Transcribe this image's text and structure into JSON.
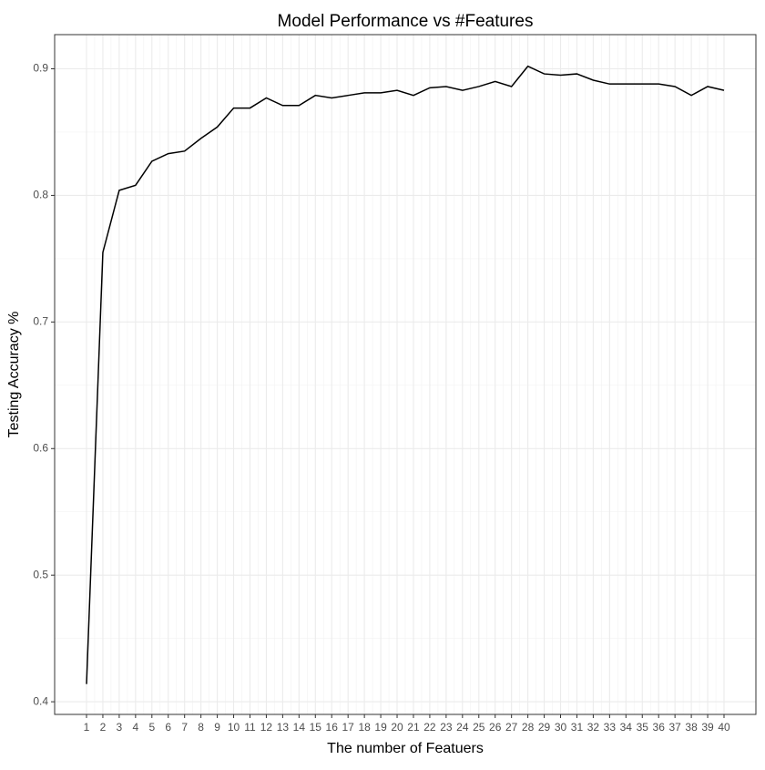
{
  "chart_data": {
    "type": "line",
    "title": "Model Performance vs #Features",
    "x_label": "The number of Featuers",
    "y_label": "Testing Accuracy %",
    "x": [
      1,
      2,
      3,
      4,
      5,
      6,
      7,
      8,
      9,
      10,
      11,
      12,
      13,
      14,
      15,
      16,
      17,
      18,
      19,
      20,
      21,
      22,
      23,
      24,
      25,
      26,
      27,
      28,
      29,
      30,
      31,
      32,
      33,
      34,
      35,
      36,
      37,
      38,
      39,
      40
    ],
    "series": [
      {
        "name": "accuracy",
        "color": "#000000",
        "values": [
          0.414,
          0.755,
          0.804,
          0.808,
          0.827,
          0.833,
          0.835,
          0.845,
          0.854,
          0.869,
          0.869,
          0.877,
          0.871,
          0.871,
          0.879,
          0.877,
          0.879,
          0.881,
          0.881,
          0.883,
          0.879,
          0.885,
          0.886,
          0.883,
          0.886,
          0.89,
          0.886,
          0.902,
          0.896,
          0.895,
          0.896,
          0.891,
          0.888,
          0.888,
          0.888,
          0.888,
          0.886,
          0.879,
          0.886,
          0.883
        ]
      }
    ],
    "xlim": [
      -0.95,
      41.95
    ],
    "ylim": [
      0.39,
      0.927
    ],
    "xticks": [
      1,
      2,
      3,
      4,
      5,
      6,
      7,
      8,
      9,
      10,
      11,
      12,
      13,
      14,
      15,
      16,
      17,
      18,
      19,
      20,
      21,
      22,
      23,
      24,
      25,
      26,
      27,
      28,
      29,
      30,
      31,
      32,
      33,
      34,
      35,
      36,
      37,
      38,
      39,
      40
    ],
    "yticks": [
      0.4,
      0.5,
      0.6,
      0.7,
      0.8,
      0.9
    ],
    "grid": true
  }
}
